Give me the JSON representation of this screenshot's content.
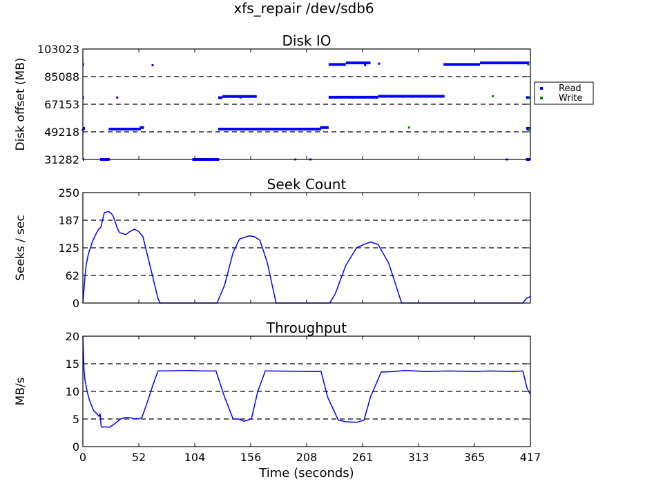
{
  "figure": {
    "suptitle": "xfs_repair /dev/sdb6",
    "xlabel": "Time (seconds)"
  },
  "colors": {
    "read": "#0000ff",
    "write": "#008000",
    "line": "#0000ff",
    "grid": "#000000"
  },
  "chart_data": [
    {
      "type": "scatter",
      "title": "Disk IO",
      "ylabel": "Disk offset (MB)",
      "xlim": [
        0,
        417
      ],
      "ylim": [
        31282,
        103023
      ],
      "xticks": [
        "0",
        "52",
        "104",
        "156",
        "208",
        "261",
        "313",
        "365",
        "417"
      ],
      "yticks": [
        "31282",
        "49218",
        "67153",
        "85088",
        "103023"
      ],
      "grid": true,
      "legend_position": "outside-right",
      "series": [
        {
          "name": "Read",
          "color": "#0000ff",
          "segments": [
            [
              [
                0,
                93000
              ],
              [
                1,
                93000
              ]
            ],
            [
              [
                0,
                71500
              ],
              [
                1,
                71500
              ]
            ],
            [
              [
                0,
                51500
              ],
              [
                2,
                51500
              ]
            ],
            [
              [
                0,
                31300
              ],
              [
                1,
                31300
              ]
            ],
            [
              [
                16,
                31300
              ],
              [
                25,
                31300
              ]
            ],
            [
              [
                24,
                51000
              ],
              [
                54,
                51000
              ]
            ],
            [
              [
                53,
                52000
              ],
              [
                57,
                52000
              ]
            ],
            [
              [
                102,
                31300
              ],
              [
                127,
                31300
              ]
            ],
            [
              [
                126,
                51000
              ],
              [
                222,
                51000
              ]
            ],
            [
              [
                221,
                52000
              ],
              [
                229,
                52000
              ]
            ],
            [
              [
                126,
                71400
              ],
              [
                130,
                71400
              ]
            ],
            [
              [
                130,
                72200
              ],
              [
                162,
                72200
              ]
            ],
            [
              [
                229,
                93000
              ],
              [
                245,
                93000
              ]
            ],
            [
              [
                245,
                94000
              ],
              [
                268,
                94000
              ]
            ],
            [
              [
                229,
                71700
              ],
              [
                275,
                71700
              ]
            ],
            [
              [
                275,
                72300
              ],
              [
                337,
                72300
              ]
            ],
            [
              [
                336,
                93000
              ],
              [
                370,
                93000
              ]
            ],
            [
              [
                370,
                94000
              ],
              [
                416,
                94000
              ]
            ],
            [
              [
                413,
                71500
              ],
              [
                417,
                71500
              ]
            ],
            [
              [
                413,
                51500
              ],
              [
                417,
                51500
              ]
            ],
            [
              [
                413,
                31300
              ],
              [
                417,
                31300
              ]
            ]
          ],
          "points": [
            [
              65,
              92500
            ],
            [
              32,
              71500
            ],
            [
              147,
              71500
            ],
            [
              263,
              92500
            ],
            [
              276,
              93500
            ],
            [
              212,
              31300
            ],
            [
              395,
              31300
            ],
            [
              0,
              50500
            ],
            [
              415,
              50500
            ]
          ]
        },
        {
          "name": "Write",
          "color": "#008000",
          "segments": [],
          "points": [
            [
              304,
              52000
            ],
            [
              382,
              72300
            ],
            [
              415,
              93000
            ],
            [
              416,
              71500
            ],
            [
              416,
              51000
            ],
            [
              198,
              31300
            ]
          ]
        }
      ]
    },
    {
      "type": "line",
      "title": "Seek Count",
      "ylabel": "Seeks / sec",
      "xlim": [
        0,
        417
      ],
      "ylim": [
        0,
        250
      ],
      "xticks": [
        "0",
        "52",
        "104",
        "156",
        "208",
        "261",
        "313",
        "365",
        "417"
      ],
      "yticks": [
        "0",
        "62",
        "125",
        "187",
        "250"
      ],
      "grid": true,
      "series": [
        {
          "color": "#0000ff",
          "x": [
            0,
            1,
            2,
            3,
            5,
            7,
            9,
            11,
            13,
            15,
            17,
            18,
            20,
            22,
            24,
            26,
            28,
            30,
            32,
            34,
            36,
            40,
            44,
            48,
            52,
            56,
            60,
            65,
            70,
            72,
            100,
            125,
            132,
            140,
            146,
            150,
            155,
            160,
            165,
            172,
            180,
            230,
            235,
            245,
            255,
            262,
            268,
            275,
            285,
            297,
            350,
            410,
            413,
            417
          ],
          "y": [
            0,
            30,
            60,
            85,
            110,
            125,
            140,
            150,
            160,
            168,
            172,
            185,
            205,
            206,
            207,
            204,
            198,
            185,
            170,
            160,
            158,
            155,
            162,
            167,
            162,
            150,
            110,
            60,
            10,
            0,
            0,
            0,
            40,
            115,
            145,
            148,
            152,
            150,
            142,
            90,
            0,
            0,
            20,
            85,
            125,
            133,
            138,
            133,
            90,
            0,
            0,
            0,
            10,
            15
          ]
        }
      ]
    },
    {
      "type": "line",
      "title": "Throughput",
      "ylabel": "MB/s",
      "xlim": [
        0,
        417
      ],
      "ylim": [
        0,
        20
      ],
      "xticks": [
        "0",
        "52",
        "104",
        "156",
        "208",
        "261",
        "313",
        "365",
        "417"
      ],
      "yticks": [
        "0",
        "5",
        "10",
        "15",
        "20"
      ],
      "grid": true,
      "series": [
        {
          "color": "#0000ff",
          "x": [
            0,
            1,
            2,
            4,
            6,
            8,
            10,
            13,
            15,
            16,
            17,
            18,
            20,
            25,
            30,
            35,
            40,
            45,
            48,
            50,
            52,
            55,
            60,
            65,
            70,
            75,
            100,
            110,
            124,
            132,
            140,
            145,
            150,
            157,
            163,
            170,
            175,
            215,
            222,
            228,
            238,
            245,
            255,
            262,
            268,
            278,
            290,
            300,
            320,
            340,
            365,
            380,
            400,
            410,
            414,
            417
          ],
          "y": [
            20,
            14,
            12,
            10,
            8.5,
            7.5,
            6.5,
            6,
            5.5,
            6,
            3.8,
            3.5,
            3.6,
            3.5,
            4.2,
            5,
            5.3,
            5.2,
            5,
            5.1,
            5,
            5.3,
            8,
            11,
            13.7,
            13.7,
            13.8,
            13.7,
            13.7,
            9,
            5,
            5,
            4.6,
            5,
            10,
            13.7,
            13.7,
            13.6,
            13.6,
            9,
            4.8,
            4.5,
            4.4,
            4.8,
            9,
            13.5,
            13.6,
            13.8,
            13.6,
            13.7,
            13.6,
            13.7,
            13.6,
            13.7,
            10.5,
            9.5
          ]
        }
      ]
    }
  ]
}
